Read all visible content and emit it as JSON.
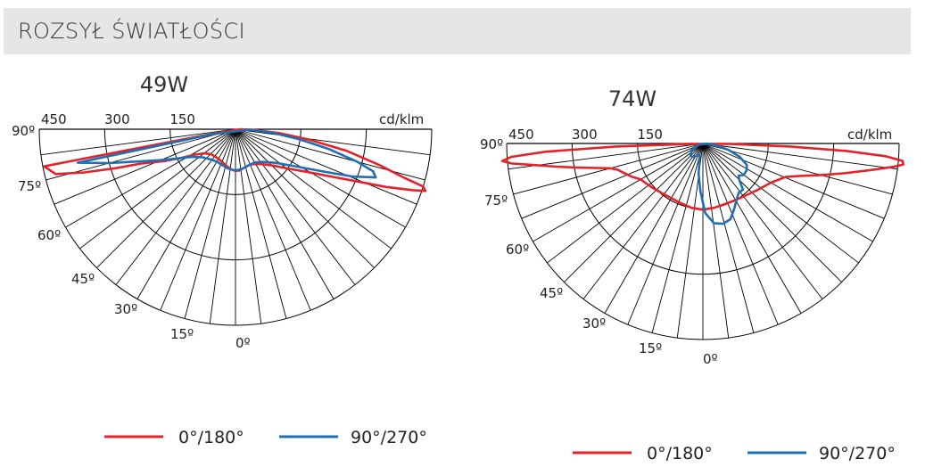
{
  "header": {
    "title": "ROZSYŁ ŚWIATŁOŚCI"
  },
  "colors": {
    "red": "#e42229",
    "blue": "#1f6fb5",
    "grid": "#000000",
    "header_bg": "#e6e6e6"
  },
  "chart_data": [
    {
      "type": "polar",
      "title": "49W",
      "unit_label": "cd/klm",
      "radial_ticks": [
        "450",
        "300",
        "150"
      ],
      "radial_values": [
        450,
        300,
        150
      ],
      "rmax": 450,
      "angle_labels": [
        "90º",
        "75º",
        "60º",
        "45º",
        "30º",
        "15º",
        "0º"
      ],
      "angle_values": [
        90,
        75,
        60,
        45,
        30,
        15,
        0
      ],
      "series": [
        {
          "name": "0°/180°",
          "color": "#e42229",
          "points": [
            [
              -79,
              75
            ],
            [
              -79,
              380
            ],
            [
              -79,
              447
            ],
            [
              -76,
              425
            ],
            [
              -74,
              360
            ],
            [
              -72,
              290
            ],
            [
              -70,
              230
            ],
            [
              -66,
              180
            ],
            [
              -62,
              140
            ],
            [
              -58,
              110
            ],
            [
              -52,
              90
            ],
            [
              -44,
              80
            ],
            [
              -35,
              78
            ],
            [
              -25,
              80
            ],
            [
              -15,
              86
            ],
            [
              -7,
              92
            ],
            [
              0,
              96
            ],
            [
              6,
              95
            ],
            [
              14,
              90
            ],
            [
              22,
              88
            ],
            [
              30,
              92
            ],
            [
              38,
              102
            ],
            [
              46,
              120
            ],
            [
              53,
              150
            ],
            [
              59,
              190
            ],
            [
              64,
              250
            ],
            [
              67,
              310
            ],
            [
              69,
              370
            ],
            [
              71,
              430
            ],
            [
              72,
              458
            ],
            [
              73,
              450
            ],
            [
              74,
              400
            ],
            [
              76,
              340
            ],
            [
              79,
              260
            ],
            [
              82,
              170
            ],
            [
              85,
              100
            ],
            [
              88,
              40
            ],
            [
              89,
              10
            ]
          ]
        },
        {
          "name": "90°/270°",
          "color": "#1f6fb5",
          "points": [
            [
              -78,
              60
            ],
            [
              -78,
              300
            ],
            [
              -78,
              370
            ],
            [
              -75,
              300
            ],
            [
              -72,
              240
            ],
            [
              -68,
              190
            ],
            [
              -64,
              155
            ],
            [
              -58,
              120
            ],
            [
              -50,
              100
            ],
            [
              -40,
              90
            ],
            [
              -30,
              86
            ],
            [
              -20,
              88
            ],
            [
              -10,
              92
            ],
            [
              0,
              95
            ],
            [
              10,
              92
            ],
            [
              20,
              88
            ],
            [
              30,
              88
            ],
            [
              40,
              98
            ],
            [
              50,
              120
            ],
            [
              58,
              160
            ],
            [
              64,
              220
            ],
            [
              68,
              290
            ],
            [
              71,
              340
            ],
            [
              73,
              330
            ],
            [
              75,
              290
            ],
            [
              78,
              220
            ],
            [
              81,
              150
            ],
            [
              85,
              80
            ],
            [
              88,
              30
            ]
          ]
        }
      ]
    },
    {
      "type": "polar",
      "title": "74W",
      "unit_label": "cd/klm",
      "radial_ticks": [
        "450",
        "300",
        "150"
      ],
      "radial_values": [
        450,
        300,
        150
      ],
      "rmax": 450,
      "angle_labels": [
        "90º",
        "75º",
        "60º",
        "45º",
        "30º",
        "15º",
        "0º"
      ],
      "angle_values": [
        90,
        75,
        60,
        45,
        30,
        15,
        0
      ],
      "series": [
        {
          "name": "0°/180°",
          "color": "#e42229",
          "points": [
            [
              -88,
              30
            ],
            [
              -88,
              200
            ],
            [
              -87,
              360
            ],
            [
              -86,
              440
            ],
            [
              -85,
              462
            ],
            [
              -84,
              440
            ],
            [
              -83,
              400
            ],
            [
              -81,
              340
            ],
            [
              -79,
              290
            ],
            [
              -77,
              250
            ],
            [
              -75,
              220
            ],
            [
              -73,
              205
            ],
            [
              -70,
              195
            ],
            [
              -65,
              180
            ],
            [
              -60,
              165
            ],
            [
              -50,
              155
            ],
            [
              -40,
              148
            ],
            [
              -30,
              145
            ],
            [
              -20,
              146
            ],
            [
              -10,
              150
            ],
            [
              0,
              152
            ],
            [
              10,
              150
            ],
            [
              20,
              148
            ],
            [
              30,
              150
            ],
            [
              40,
              155
            ],
            [
              50,
              165
            ],
            [
              60,
              180
            ],
            [
              68,
              205
            ],
            [
              72,
              240
            ],
            [
              75,
              280
            ],
            [
              78,
              330
            ],
            [
              81,
              390
            ],
            [
              83,
              440
            ],
            [
              84,
              462
            ],
            [
              85,
              460
            ],
            [
              86,
              420
            ],
            [
              87,
              330
            ],
            [
              88,
              200
            ],
            [
              89,
              60
            ]
          ]
        },
        {
          "name": "90°/270°",
          "color": "#1f6fb5",
          "points": [
            [
              -75,
              10
            ],
            [
              -60,
              30
            ],
            [
              -45,
              40
            ],
            [
              -35,
              38
            ],
            [
              -25,
              30
            ],
            [
              -15,
              28
            ],
            [
              -8,
              70
            ],
            [
              -3,
              110
            ],
            [
              2,
              160
            ],
            [
              8,
              185
            ],
            [
              14,
              190
            ],
            [
              20,
              185
            ],
            [
              26,
              165
            ],
            [
              31,
              150
            ],
            [
              36,
              140
            ],
            [
              41,
              140
            ],
            [
              45,
              118
            ],
            [
              48,
              110
            ],
            [
              52,
              118
            ],
            [
              58,
              118
            ],
            [
              64,
              112
            ],
            [
              70,
              90
            ],
            [
              76,
              60
            ],
            [
              82,
              30
            ],
            [
              88,
              10
            ]
          ]
        }
      ]
    }
  ],
  "legends": [
    {
      "items": [
        {
          "label": "0°/180°",
          "color": "#e42229"
        },
        {
          "label": "90°/270°",
          "color": "#1f6fb5"
        }
      ]
    },
    {
      "items": [
        {
          "label": "0°/180°",
          "color": "#e42229"
        },
        {
          "label": "90°/270°",
          "color": "#1f6fb5"
        }
      ]
    }
  ]
}
